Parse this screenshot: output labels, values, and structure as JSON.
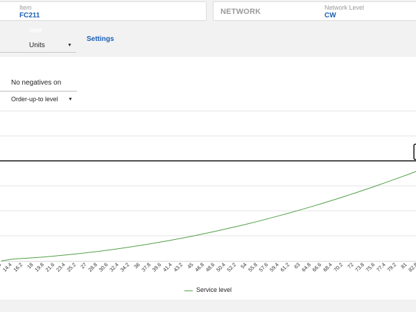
{
  "filters": {
    "item": {
      "label": "Item",
      "value": "FC211"
    },
    "network": {
      "label": "NETWORK",
      "level_label": "Network Level",
      "level_value": "CW"
    }
  },
  "units": {
    "label": "Unit",
    "selected": "Units"
  },
  "settings_link": "Settings",
  "controls": {
    "no_negatives_label": "No negatives on",
    "mode_selected": "Order-up-to level"
  },
  "chart_data": {
    "type": "line",
    "title": "",
    "xlabel": "",
    "ylabel": "",
    "x": [
      "3.6",
      "14.4",
      "16.2",
      "18",
      "19.8",
      "21.6",
      "23.4",
      "25.2",
      "27",
      "28.8",
      "30.6",
      "32.4",
      "34.2",
      "36",
      "37.8",
      "39.6",
      "41.4",
      "43.2",
      "45",
      "46.8",
      "48.6",
      "50.4",
      "52.2",
      "54",
      "55.8",
      "57.6",
      "59.4",
      "61.2",
      "63",
      "64.8",
      "66.6",
      "68.4",
      "70.2",
      "72",
      "73.8",
      "75.6",
      "77.4",
      "79.2",
      "81",
      "82.8",
      "84.6",
      "86.4"
    ],
    "series": [
      {
        "name": "Service level",
        "color": "#4f9d45",
        "values": [
          0.5,
          2.5,
          3.2,
          4.0,
          4.9,
          5.9,
          7.0,
          8.2,
          9.5,
          10.9,
          12.4,
          14.0,
          15.7,
          17.5,
          19.4,
          21.4,
          23.5,
          25.7,
          28.0,
          30.4,
          32.9,
          35.5,
          38.2,
          41.0,
          43.9,
          46.9,
          50.0,
          53.2,
          56.5,
          59.9,
          63.4,
          67.0,
          70.7,
          74.5,
          78.4,
          82.4,
          86.5,
          90.7,
          95.0,
          99.4,
          103.9,
          108.5
        ]
      }
    ],
    "ylim": [
      0,
      165
    ],
    "grid": true,
    "legend": "bottom-center"
  },
  "legend": {
    "label": "Service level"
  }
}
